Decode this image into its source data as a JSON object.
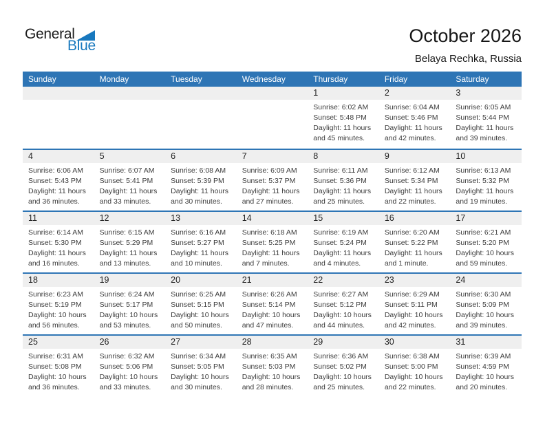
{
  "logo": {
    "part1": "General",
    "part2": "Blue"
  },
  "header": {
    "title": "October 2026",
    "subtitle": "Belaya Rechka, Russia"
  },
  "colors": {
    "header_blue": "#2e75b5",
    "logo_blue": "#1878be",
    "day_strip_gray": "#efefef"
  },
  "weekdays": [
    "Sunday",
    "Monday",
    "Tuesday",
    "Wednesday",
    "Thursday",
    "Friday",
    "Saturday"
  ],
  "weeks": [
    [
      {
        "day": "",
        "sunrise": "",
        "sunset": "",
        "daylight": ""
      },
      {
        "day": "",
        "sunrise": "",
        "sunset": "",
        "daylight": ""
      },
      {
        "day": "",
        "sunrise": "",
        "sunset": "",
        "daylight": ""
      },
      {
        "day": "",
        "sunrise": "",
        "sunset": "",
        "daylight": ""
      },
      {
        "day": "1",
        "sunrise": "Sunrise: 6:02 AM",
        "sunset": "Sunset: 5:48 PM",
        "daylight": "Daylight: 11 hours\nand 45 minutes."
      },
      {
        "day": "2",
        "sunrise": "Sunrise: 6:04 AM",
        "sunset": "Sunset: 5:46 PM",
        "daylight": "Daylight: 11 hours\nand 42 minutes."
      },
      {
        "day": "3",
        "sunrise": "Sunrise: 6:05 AM",
        "sunset": "Sunset: 5:44 PM",
        "daylight": "Daylight: 11 hours\nand 39 minutes."
      }
    ],
    [
      {
        "day": "4",
        "sunrise": "Sunrise: 6:06 AM",
        "sunset": "Sunset: 5:43 PM",
        "daylight": "Daylight: 11 hours\nand 36 minutes."
      },
      {
        "day": "5",
        "sunrise": "Sunrise: 6:07 AM",
        "sunset": "Sunset: 5:41 PM",
        "daylight": "Daylight: 11 hours\nand 33 minutes."
      },
      {
        "day": "6",
        "sunrise": "Sunrise: 6:08 AM",
        "sunset": "Sunset: 5:39 PM",
        "daylight": "Daylight: 11 hours\nand 30 minutes."
      },
      {
        "day": "7",
        "sunrise": "Sunrise: 6:09 AM",
        "sunset": "Sunset: 5:37 PM",
        "daylight": "Daylight: 11 hours\nand 27 minutes."
      },
      {
        "day": "8",
        "sunrise": "Sunrise: 6:11 AM",
        "sunset": "Sunset: 5:36 PM",
        "daylight": "Daylight: 11 hours\nand 25 minutes."
      },
      {
        "day": "9",
        "sunrise": "Sunrise: 6:12 AM",
        "sunset": "Sunset: 5:34 PM",
        "daylight": "Daylight: 11 hours\nand 22 minutes."
      },
      {
        "day": "10",
        "sunrise": "Sunrise: 6:13 AM",
        "sunset": "Sunset: 5:32 PM",
        "daylight": "Daylight: 11 hours\nand 19 minutes."
      }
    ],
    [
      {
        "day": "11",
        "sunrise": "Sunrise: 6:14 AM",
        "sunset": "Sunset: 5:30 PM",
        "daylight": "Daylight: 11 hours\nand 16 minutes."
      },
      {
        "day": "12",
        "sunrise": "Sunrise: 6:15 AM",
        "sunset": "Sunset: 5:29 PM",
        "daylight": "Daylight: 11 hours\nand 13 minutes."
      },
      {
        "day": "13",
        "sunrise": "Sunrise: 6:16 AM",
        "sunset": "Sunset: 5:27 PM",
        "daylight": "Daylight: 11 hours\nand 10 minutes."
      },
      {
        "day": "14",
        "sunrise": "Sunrise: 6:18 AM",
        "sunset": "Sunset: 5:25 PM",
        "daylight": "Daylight: 11 hours\nand 7 minutes."
      },
      {
        "day": "15",
        "sunrise": "Sunrise: 6:19 AM",
        "sunset": "Sunset: 5:24 PM",
        "daylight": "Daylight: 11 hours\nand 4 minutes."
      },
      {
        "day": "16",
        "sunrise": "Sunrise: 6:20 AM",
        "sunset": "Sunset: 5:22 PM",
        "daylight": "Daylight: 11 hours\nand 1 minute."
      },
      {
        "day": "17",
        "sunrise": "Sunrise: 6:21 AM",
        "sunset": "Sunset: 5:20 PM",
        "daylight": "Daylight: 10 hours\nand 59 minutes."
      }
    ],
    [
      {
        "day": "18",
        "sunrise": "Sunrise: 6:23 AM",
        "sunset": "Sunset: 5:19 PM",
        "daylight": "Daylight: 10 hours\nand 56 minutes."
      },
      {
        "day": "19",
        "sunrise": "Sunrise: 6:24 AM",
        "sunset": "Sunset: 5:17 PM",
        "daylight": "Daylight: 10 hours\nand 53 minutes."
      },
      {
        "day": "20",
        "sunrise": "Sunrise: 6:25 AM",
        "sunset": "Sunset: 5:15 PM",
        "daylight": "Daylight: 10 hours\nand 50 minutes."
      },
      {
        "day": "21",
        "sunrise": "Sunrise: 6:26 AM",
        "sunset": "Sunset: 5:14 PM",
        "daylight": "Daylight: 10 hours\nand 47 minutes."
      },
      {
        "day": "22",
        "sunrise": "Sunrise: 6:27 AM",
        "sunset": "Sunset: 5:12 PM",
        "daylight": "Daylight: 10 hours\nand 44 minutes."
      },
      {
        "day": "23",
        "sunrise": "Sunrise: 6:29 AM",
        "sunset": "Sunset: 5:11 PM",
        "daylight": "Daylight: 10 hours\nand 42 minutes."
      },
      {
        "day": "24",
        "sunrise": "Sunrise: 6:30 AM",
        "sunset": "Sunset: 5:09 PM",
        "daylight": "Daylight: 10 hours\nand 39 minutes."
      }
    ],
    [
      {
        "day": "25",
        "sunrise": "Sunrise: 6:31 AM",
        "sunset": "Sunset: 5:08 PM",
        "daylight": "Daylight: 10 hours\nand 36 minutes."
      },
      {
        "day": "26",
        "sunrise": "Sunrise: 6:32 AM",
        "sunset": "Sunset: 5:06 PM",
        "daylight": "Daylight: 10 hours\nand 33 minutes."
      },
      {
        "day": "27",
        "sunrise": "Sunrise: 6:34 AM",
        "sunset": "Sunset: 5:05 PM",
        "daylight": "Daylight: 10 hours\nand 30 minutes."
      },
      {
        "day": "28",
        "sunrise": "Sunrise: 6:35 AM",
        "sunset": "Sunset: 5:03 PM",
        "daylight": "Daylight: 10 hours\nand 28 minutes."
      },
      {
        "day": "29",
        "sunrise": "Sunrise: 6:36 AM",
        "sunset": "Sunset: 5:02 PM",
        "daylight": "Daylight: 10 hours\nand 25 minutes."
      },
      {
        "day": "30",
        "sunrise": "Sunrise: 6:38 AM",
        "sunset": "Sunset: 5:00 PM",
        "daylight": "Daylight: 10 hours\nand 22 minutes."
      },
      {
        "day": "31",
        "sunrise": "Sunrise: 6:39 AM",
        "sunset": "Sunset: 4:59 PM",
        "daylight": "Daylight: 10 hours\nand 20 minutes."
      }
    ]
  ]
}
